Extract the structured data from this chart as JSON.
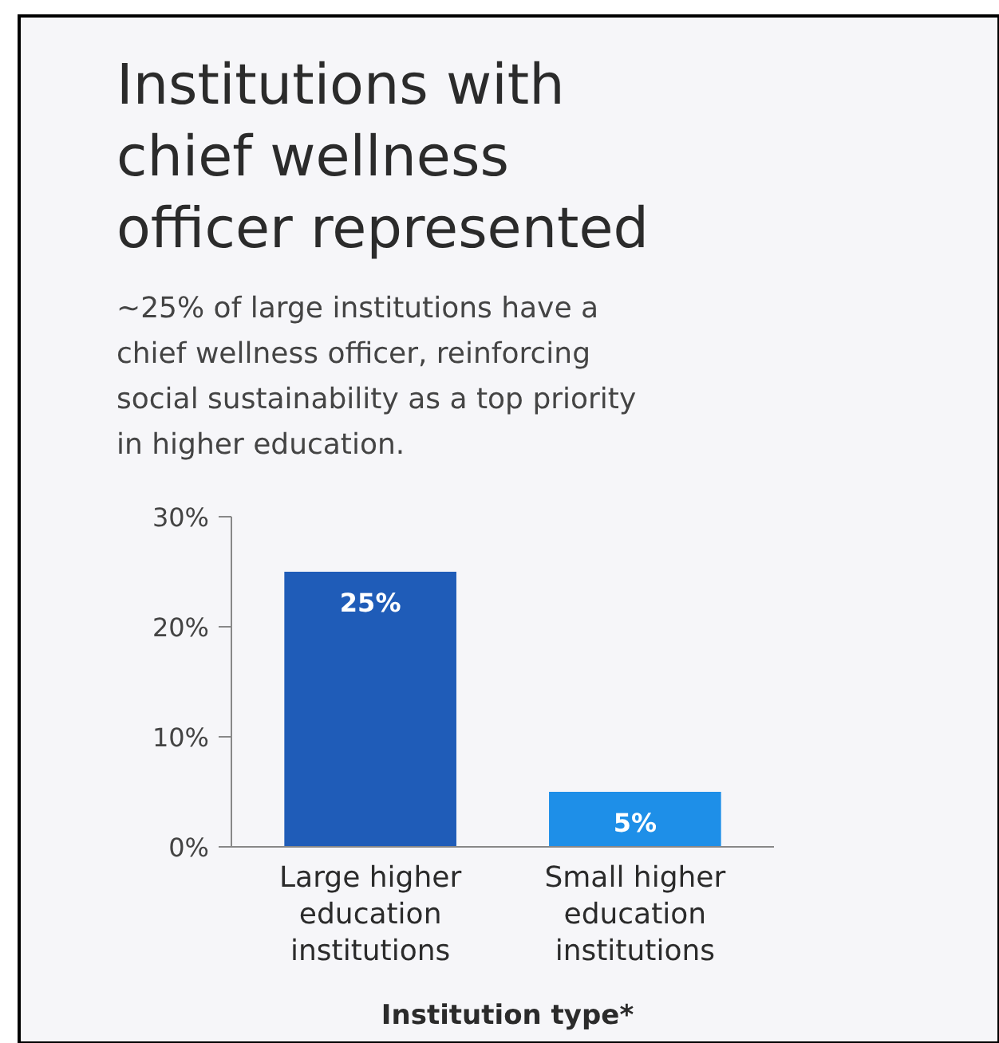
{
  "chart_data": {
    "type": "bar",
    "title": "Institutions with\nchief wellness\nofficer represented",
    "subtitle": "~25% of large institutions have a\nchief wellness officer, reinforcing\nsocial sustainability as a top priority\nin higher education.",
    "categories": [
      "Large higher\neducation\ninstitutions",
      "Small higher\neducation\ninstitutions"
    ],
    "values": [
      25,
      5
    ],
    "colors": [
      "#1f5cb8",
      "#1e8fe8"
    ],
    "value_labels": [
      "25%",
      "5%"
    ],
    "xlabel": "Institution type*",
    "ylim": [
      0,
      30
    ],
    "yticks": [
      {
        "value": 0,
        "label": "0%"
      },
      {
        "value": 10,
        "label": "10%"
      },
      {
        "value": 20,
        "label": "20%"
      },
      {
        "value": 30,
        "label": "30%"
      }
    ],
    "grid": false
  }
}
